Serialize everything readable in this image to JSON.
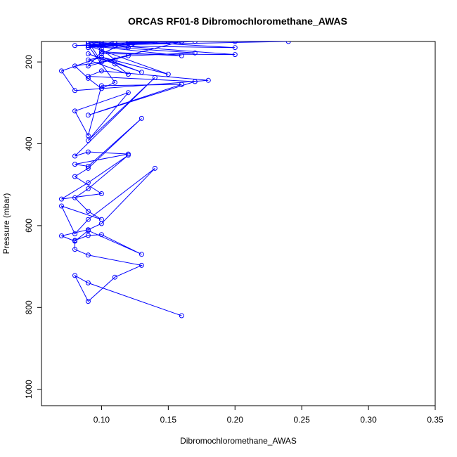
{
  "chart_data": {
    "type": "line",
    "title": "ORCAS RF01-8 Dibromochloromethane_AWAS",
    "xlabel": "Dibromochloromethane_AWAS",
    "ylabel": "Pressure (mbar)",
    "xlim": [
      0.055,
      0.35
    ],
    "ylim": [
      1040,
      150
    ],
    "y_axis_reversed": true,
    "grid": false,
    "x_ticks": [
      0.1,
      0.15,
      0.2,
      0.25,
      0.3,
      0.35
    ],
    "x_tick_labels": [
      "0.10",
      "0.15",
      "0.20",
      "0.25",
      "0.30",
      "0.35"
    ],
    "y_ticks": [
      200,
      400,
      600,
      800,
      1000
    ],
    "y_tick_labels": [
      "200",
      "400",
      "600",
      "800",
      "1000"
    ],
    "color": "#0000ff",
    "marker": "open-circle",
    "series": [
      {
        "x": [
          0.16,
          0.09,
          0.08,
          0.09,
          0.11,
          0.13,
          0.09,
          0.08,
          0.08,
          0.09,
          0.1,
          0.13,
          0.09,
          0.08,
          0.07,
          0.09,
          0.1,
          0.14,
          0.09,
          0.08,
          0.07,
          0.1,
          0.09,
          0.08,
          0.09,
          0.12,
          0.09,
          0.07,
          0.1,
          0.08,
          0.09,
          0.13,
          0.09,
          0.08,
          0.12,
          0.09,
          0.08,
          0.14,
          0.09,
          0.12,
          0.08,
          0.09,
          0.1,
          0.16,
          0.09,
          0.17,
          0.09,
          0.1,
          0.18,
          0.08,
          0.07,
          0.1,
          0.09,
          0.12,
          0.11,
          0.09,
          0.13,
          0.1,
          0.15,
          0.09,
          0.16,
          0.1,
          0.09,
          0.12,
          0.17,
          0.09,
          0.2,
          0.12,
          0.1,
          0.2,
          0.09,
          0.1,
          0.11,
          0.08,
          0.09,
          0.1,
          0.11,
          0.09,
          0.13,
          0.12,
          0.09,
          0.1,
          0.16,
          0.11,
          0.09,
          0.1,
          0.15,
          0.09,
          0.14,
          0.16,
          0.12,
          0.13,
          0.1,
          0.09,
          0.11,
          0.17,
          0.12,
          0.09,
          0.2,
          0.1,
          0.24,
          0.08,
          0.11,
          0.09
        ],
        "y": [
          820,
          740,
          722,
          785,
          726,
          697,
          672,
          658,
          636,
          624,
          622,
          670,
          612,
          638,
          625,
          610,
          595,
          460,
          585,
          620,
          552,
          585,
          565,
          532,
          510,
          428,
          495,
          535,
          522,
          480,
          460,
          338,
          455,
          450,
          425,
          420,
          430,
          238,
          392,
          275,
          320,
          380,
          258,
          255,
          330,
          248,
          235,
          222,
          245,
          270,
          222,
          188,
          195,
          230,
          205,
          180,
          225,
          188,
          230,
          160,
          185,
          175,
          210,
          185,
          178,
          160,
          165,
          150,
          180,
          182,
          155,
          168,
          195,
          210,
          240,
          265,
          250,
          160,
          150,
          165,
          150,
          200,
          150,
          150,
          165,
          155,
          150,
          165,
          150,
          150,
          155,
          150,
          160,
          150,
          160,
          150,
          150,
          150,
          150,
          150,
          150,
          160,
          155,
          150
        ]
      }
    ]
  }
}
